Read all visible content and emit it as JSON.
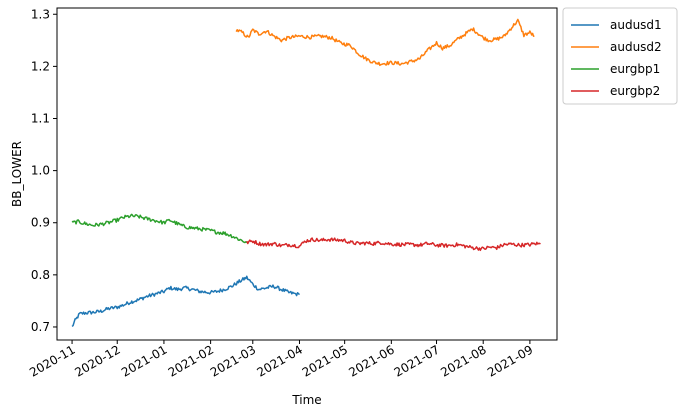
{
  "chart_data": {
    "type": "line",
    "xlabel": "Time",
    "ylabel": "BB_LOWER",
    "xlim": [
      "2020-10-22",
      "2021-09-19"
    ],
    "ylim": [
      0.675,
      1.312
    ],
    "x_ticks": [
      "2020-11",
      "2020-12",
      "2021-01",
      "2021-02",
      "2021-03",
      "2021-04",
      "2021-05",
      "2021-06",
      "2021-07",
      "2021-08",
      "2021-09"
    ],
    "y_ticks": [
      "0.7",
      "0.8",
      "0.9",
      "1.0",
      "1.1",
      "1.2",
      "1.3"
    ],
    "legend_position": "outside upper right",
    "series": [
      {
        "name": "audusd1",
        "color": "#1f77b4",
        "points": [
          [
            "2020-11-01",
            0.7
          ],
          [
            "2020-11-03",
            0.712
          ],
          [
            "2020-11-06",
            0.725
          ],
          [
            "2020-11-10",
            0.727
          ],
          [
            "2020-11-15",
            0.728
          ],
          [
            "2020-11-20",
            0.73
          ],
          [
            "2020-11-25",
            0.735
          ],
          [
            "2020-12-01",
            0.738
          ],
          [
            "2020-12-05",
            0.742
          ],
          [
            "2020-12-10",
            0.748
          ],
          [
            "2020-12-15",
            0.752
          ],
          [
            "2020-12-20",
            0.758
          ],
          [
            "2020-12-25",
            0.762
          ],
          [
            "2021-01-01",
            0.768
          ],
          [
            "2021-01-05",
            0.775
          ],
          [
            "2021-01-10",
            0.772
          ],
          [
            "2021-01-15",
            0.775
          ],
          [
            "2021-01-20",
            0.772
          ],
          [
            "2021-01-25",
            0.768
          ],
          [
            "2021-02-01",
            0.766
          ],
          [
            "2021-02-05",
            0.768
          ],
          [
            "2021-02-10",
            0.772
          ],
          [
            "2021-02-15",
            0.778
          ],
          [
            "2021-02-20",
            0.787
          ],
          [
            "2021-02-25",
            0.795
          ],
          [
            "2021-03-01",
            0.782
          ],
          [
            "2021-03-05",
            0.772
          ],
          [
            "2021-03-10",
            0.775
          ],
          [
            "2021-03-15",
            0.778
          ],
          [
            "2021-03-20",
            0.772
          ],
          [
            "2021-03-25",
            0.766
          ],
          [
            "2021-04-01",
            0.762
          ]
        ]
      },
      {
        "name": "audusd2",
        "color": "#ff7f0e",
        "points": [
          [
            "2021-02-18",
            1.27
          ],
          [
            "2021-02-22",
            1.265
          ],
          [
            "2021-02-26",
            1.255
          ],
          [
            "2021-03-01",
            1.27
          ],
          [
            "2021-03-05",
            1.262
          ],
          [
            "2021-03-10",
            1.268
          ],
          [
            "2021-03-15",
            1.258
          ],
          [
            "2021-03-20",
            1.25
          ],
          [
            "2021-03-25",
            1.255
          ],
          [
            "2021-04-01",
            1.258
          ],
          [
            "2021-04-08",
            1.256
          ],
          [
            "2021-04-15",
            1.258
          ],
          [
            "2021-04-22",
            1.255
          ],
          [
            "2021-04-28",
            1.245
          ],
          [
            "2021-05-05",
            1.24
          ],
          [
            "2021-05-10",
            1.225
          ],
          [
            "2021-05-15",
            1.215
          ],
          [
            "2021-05-20",
            1.208
          ],
          [
            "2021-05-25",
            1.205
          ],
          [
            "2021-06-01",
            1.207
          ],
          [
            "2021-06-08",
            1.205
          ],
          [
            "2021-06-15",
            1.21
          ],
          [
            "2021-06-20",
            1.215
          ],
          [
            "2021-06-25",
            1.23
          ],
          [
            "2021-07-01",
            1.245
          ],
          [
            "2021-07-05",
            1.235
          ],
          [
            "2021-07-10",
            1.24
          ],
          [
            "2021-07-15",
            1.252
          ],
          [
            "2021-07-20",
            1.262
          ],
          [
            "2021-07-25",
            1.272
          ],
          [
            "2021-08-01",
            1.255
          ],
          [
            "2021-08-05",
            1.25
          ],
          [
            "2021-08-10",
            1.252
          ],
          [
            "2021-08-15",
            1.258
          ],
          [
            "2021-08-20",
            1.275
          ],
          [
            "2021-08-24",
            1.288
          ],
          [
            "2021-08-28",
            1.26
          ],
          [
            "2021-09-01",
            1.265
          ],
          [
            "2021-09-04",
            1.258
          ]
        ]
      },
      {
        "name": "eurgbp1",
        "color": "#2ca02c",
        "points": [
          [
            "2020-11-01",
            0.9
          ],
          [
            "2020-11-05",
            0.902
          ],
          [
            "2020-11-10",
            0.898
          ],
          [
            "2020-11-15",
            0.895
          ],
          [
            "2020-11-20",
            0.897
          ],
          [
            "2020-11-25",
            0.9
          ],
          [
            "2020-12-01",
            0.905
          ],
          [
            "2020-12-05",
            0.91
          ],
          [
            "2020-12-10",
            0.913
          ],
          [
            "2020-12-15",
            0.912
          ],
          [
            "2020-12-20",
            0.908
          ],
          [
            "2020-12-25",
            0.905
          ],
          [
            "2021-01-01",
            0.9
          ],
          [
            "2021-01-05",
            0.905
          ],
          [
            "2021-01-10",
            0.898
          ],
          [
            "2021-01-15",
            0.892
          ],
          [
            "2021-01-20",
            0.89
          ],
          [
            "2021-01-25",
            0.888
          ],
          [
            "2021-02-01",
            0.885
          ],
          [
            "2021-02-05",
            0.882
          ],
          [
            "2021-02-10",
            0.88
          ],
          [
            "2021-02-15",
            0.875
          ],
          [
            "2021-02-20",
            0.868
          ],
          [
            "2021-02-25",
            0.862
          ]
        ]
      },
      {
        "name": "eurgbp2",
        "color": "#d62728",
        "points": [
          [
            "2021-02-25",
            0.862
          ],
          [
            "2021-03-01",
            0.865
          ],
          [
            "2021-03-05",
            0.86
          ],
          [
            "2021-03-10",
            0.858
          ],
          [
            "2021-03-15",
            0.86
          ],
          [
            "2021-03-20",
            0.856
          ],
          [
            "2021-03-25",
            0.858
          ],
          [
            "2021-04-01",
            0.855
          ],
          [
            "2021-04-05",
            0.865
          ],
          [
            "2021-04-10",
            0.868
          ],
          [
            "2021-04-15",
            0.866
          ],
          [
            "2021-04-20",
            0.868
          ],
          [
            "2021-04-25",
            0.867
          ],
          [
            "2021-05-01",
            0.866
          ],
          [
            "2021-05-05",
            0.862
          ],
          [
            "2021-05-10",
            0.86
          ],
          [
            "2021-05-15",
            0.861
          ],
          [
            "2021-05-20",
            0.86
          ],
          [
            "2021-05-25",
            0.862
          ],
          [
            "2021-06-01",
            0.859
          ],
          [
            "2021-06-08",
            0.858
          ],
          [
            "2021-06-15",
            0.858
          ],
          [
            "2021-06-20",
            0.857
          ],
          [
            "2021-06-25",
            0.86
          ],
          [
            "2021-07-01",
            0.857
          ],
          [
            "2021-07-08",
            0.856
          ],
          [
            "2021-07-15",
            0.858
          ],
          [
            "2021-07-20",
            0.855
          ],
          [
            "2021-07-25",
            0.852
          ],
          [
            "2021-08-01",
            0.85
          ],
          [
            "2021-08-05",
            0.853
          ],
          [
            "2021-08-10",
            0.852
          ],
          [
            "2021-08-15",
            0.858
          ],
          [
            "2021-08-20",
            0.859
          ],
          [
            "2021-08-25",
            0.857
          ],
          [
            "2021-09-01",
            0.858
          ],
          [
            "2021-09-05",
            0.86
          ],
          [
            "2021-09-08",
            0.859
          ]
        ]
      }
    ]
  }
}
